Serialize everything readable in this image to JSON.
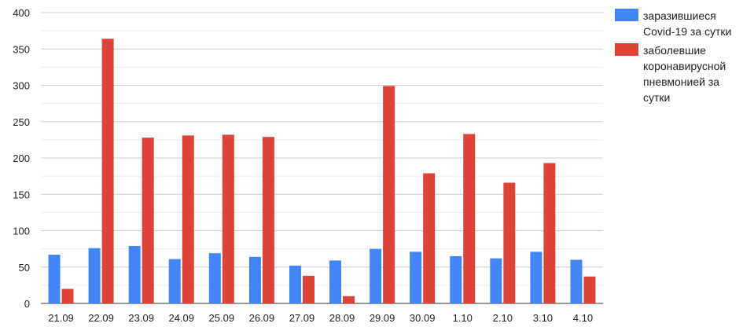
{
  "chart_data": {
    "type": "bar",
    "categories": [
      "21.09",
      "22.09",
      "23.09",
      "24.09",
      "25.09",
      "26.09",
      "27.09",
      "28.09",
      "29.09",
      "30.09",
      "1.10",
      "2.10",
      "3.10",
      "4.10"
    ],
    "series": [
      {
        "name": "заразившиеся Covid-19 за сутки",
        "color": "#4285f4",
        "values": [
          67,
          76,
          79,
          61,
          69,
          64,
          52,
          59,
          75,
          71,
          65,
          62,
          71,
          60
        ]
      },
      {
        "name": "заболевшие коронавирусной пневмонией за сутки",
        "color": "#db4437",
        "values": [
          20,
          364,
          228,
          231,
          232,
          229,
          38,
          10,
          299,
          179,
          233,
          166,
          193,
          37
        ]
      }
    ],
    "yticks": [
      0,
      50,
      100,
      150,
      200,
      250,
      300,
      350,
      400
    ],
    "ylim": [
      0,
      400
    ],
    "grid": true,
    "legend_position": "right"
  }
}
